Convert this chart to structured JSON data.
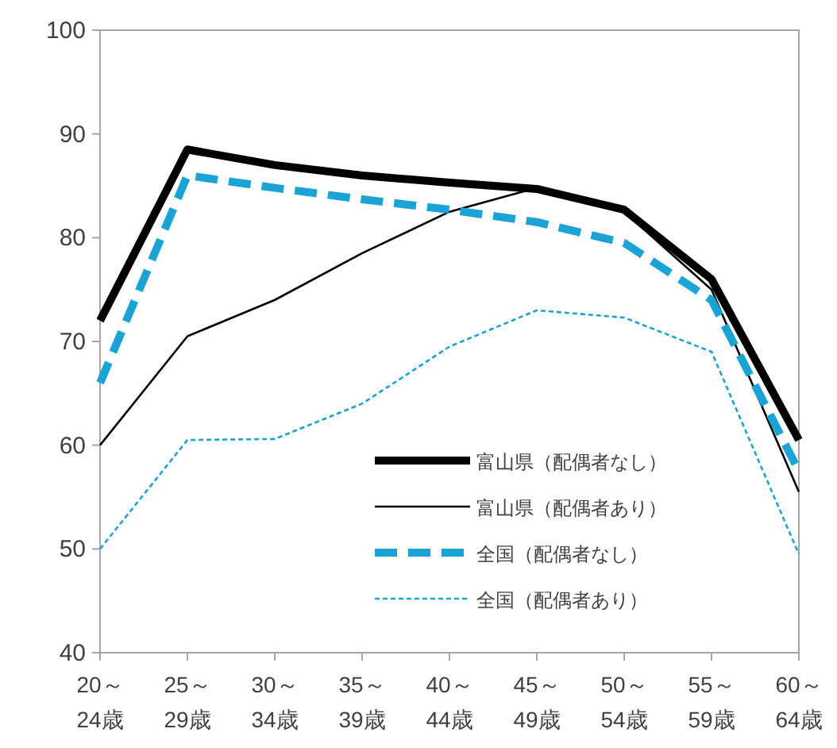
{
  "chart_data": {
    "type": "line",
    "categories": [
      "20～\n24歳",
      "25～\n29歳",
      "30～\n34歳",
      "35～\n39歳",
      "40～\n44歳",
      "45～\n49歳",
      "50～\n54歳",
      "55～\n59歳",
      "60～\n64歳"
    ],
    "ylim": [
      40,
      100
    ],
    "yticks": [
      40,
      50,
      60,
      70,
      80,
      90,
      100
    ],
    "legend": "bottom right",
    "grid": false,
    "marker": "none",
    "series": [
      {
        "name": "富山県（配偶者なし）",
        "color": "#000000",
        "line_style": "solid",
        "values": [
          72,
          88.5,
          87,
          86,
          85.3,
          84.7,
          82.7,
          76,
          60.5
        ]
      },
      {
        "name": "富山県（配偶者あり）",
        "color": "#000000",
        "line_style": "solid",
        "values": [
          60,
          70.5,
          74,
          78.5,
          82.5,
          84.8,
          82.5,
          75,
          55.5
        ]
      },
      {
        "name": "全国（配偶者なし）",
        "color": "#1aa3d4",
        "line_style": "dashed",
        "values": [
          66,
          86,
          84.8,
          83.7,
          82.7,
          81.5,
          79.5,
          74,
          57.5
        ]
      },
      {
        "name": "全国（配偶者あり）",
        "color": "#1aa3d4",
        "line_style": "dotted",
        "values": [
          50,
          60.5,
          60.6,
          64,
          69.5,
          73,
          72.3,
          69,
          49.5
        ]
      }
    ]
  }
}
